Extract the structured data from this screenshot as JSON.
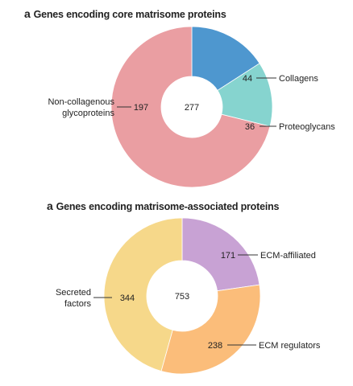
{
  "chart_data": [
    {
      "type": "pie",
      "letter": "a",
      "title": "Genes encoding core matrisome proteins",
      "total": "277",
      "slices": [
        {
          "name": "Collagens",
          "value": 44,
          "label": "44",
          "color": "#4e97cf"
        },
        {
          "name": "Proteoglycans",
          "value": 36,
          "label": "36",
          "color": "#86d4cf"
        },
        {
          "name": "Non-collagenous glycoproteins",
          "name_lines": [
            "Non-collagenous",
            "glycoproteins"
          ],
          "value": 197,
          "label": "197",
          "color": "#ea9ea2"
        }
      ]
    },
    {
      "type": "pie",
      "letter": "a",
      "title": "Genes encoding matrisome-associated proteins",
      "total": "753",
      "slices": [
        {
          "name": "ECM-affiliated",
          "value": 171,
          "label": "171",
          "color": "#c8a2d4"
        },
        {
          "name": "ECM regulators",
          "value": 238,
          "label": "238",
          "color": "#fbbd7a"
        },
        {
          "name": "Secreted factors",
          "name_lines": [
            "Secreted",
            "factors"
          ],
          "value": 344,
          "label": "344",
          "color": "#f6d88a"
        }
      ]
    }
  ]
}
